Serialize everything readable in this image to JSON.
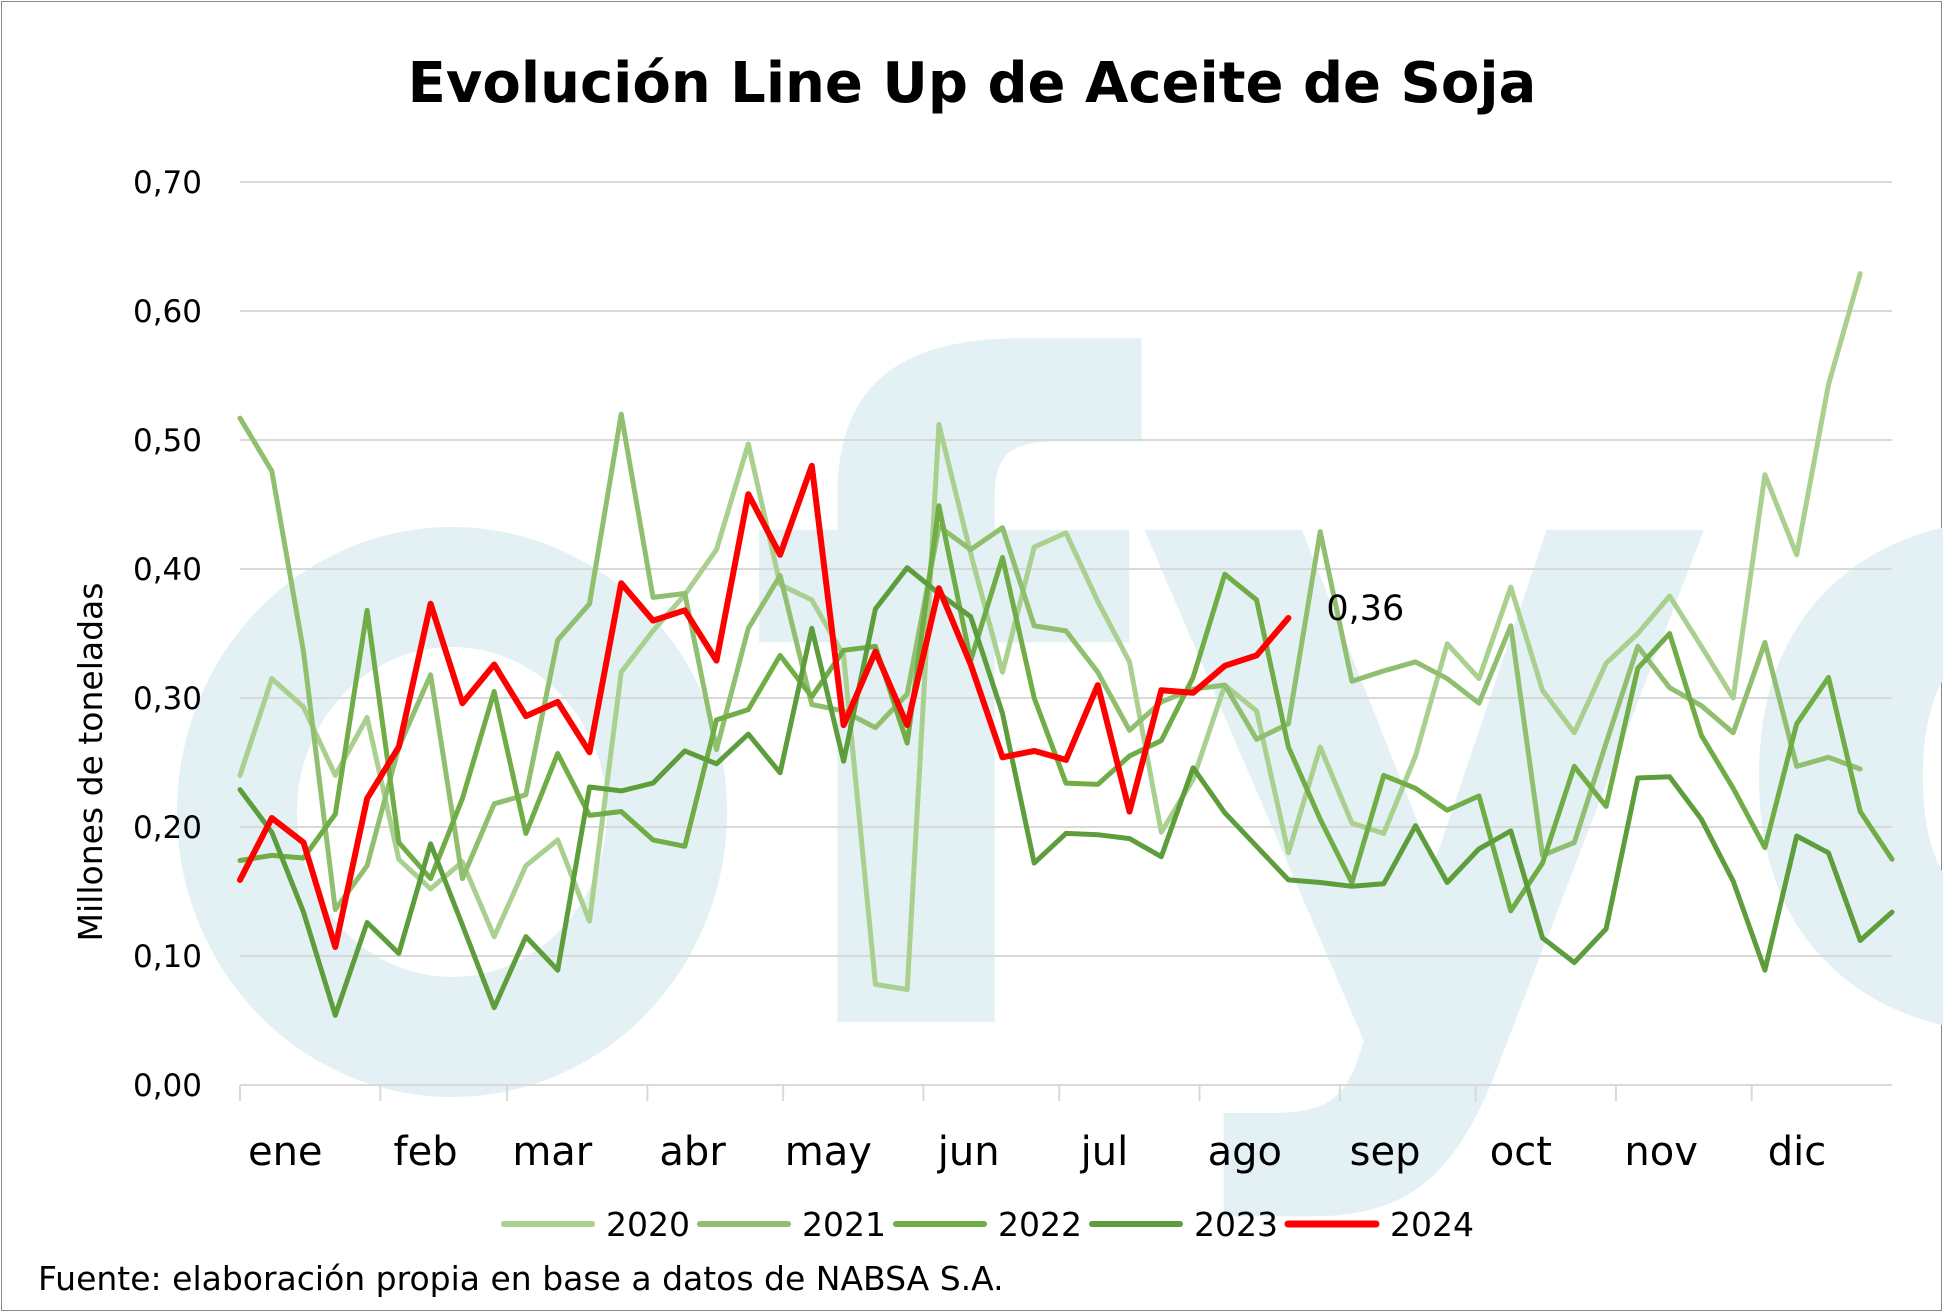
{
  "chart_data": {
    "type": "line",
    "title": "Evolución Line Up de Aceite de Soja",
    "ylabel": "Millones de toneladas",
    "xlabel": "",
    "ylim": [
      0,
      0.7
    ],
    "yticks": [
      0,
      0.1,
      0.2,
      0.3,
      0.4,
      0.5,
      0.6,
      0.7
    ],
    "ytick_labels": [
      "0,00",
      "0,10",
      "0,20",
      "0,30",
      "0,40",
      "0,50",
      "0,60",
      "0,70"
    ],
    "months": [
      "ene",
      "feb",
      "mar",
      "abr",
      "may",
      "jun",
      "jul",
      "ago",
      "sep",
      "oct",
      "nov",
      "dic"
    ],
    "x_unit": "week index (0-52)",
    "grid": "horizontal",
    "legend_position": "bottom",
    "series": [
      {
        "name": "2020",
        "color": "#a9d08e",
        "values": [
          0.24,
          0.315,
          0.293,
          0.24,
          0.285,
          0.175,
          0.152,
          0.173,
          0.115,
          0.17,
          0.19,
          0.127,
          0.32,
          0.352,
          0.38,
          0.415,
          0.497,
          0.388,
          0.376,
          0.333,
          0.078,
          0.074,
          0.512,
          0.412,
          0.32,
          0.417,
          0.428,
          0.375,
          0.328,
          0.196,
          0.237,
          0.31,
          0.29,
          0.18,
          0.262,
          0.203,
          0.195,
          0.255,
          0.342,
          0.315,
          0.386,
          0.306,
          0.273,
          0.327,
          0.35,
          0.379,
          0.34,
          0.3,
          0.473,
          0.411,
          0.543,
          0.629
        ]
      },
      {
        "name": "2021",
        "color": "#8fbf6f",
        "values": [
          0.517,
          0.476,
          0.336,
          0.136,
          0.17,
          0.262,
          0.318,
          0.16,
          0.218,
          0.225,
          0.345,
          0.373,
          0.52,
          0.378,
          0.381,
          0.26,
          0.354,
          0.395,
          0.295,
          0.29,
          0.277,
          0.303,
          0.433,
          0.415,
          0.432,
          0.356,
          0.352,
          0.32,
          0.275,
          0.297,
          0.307,
          0.31,
          0.268,
          0.28,
          0.429,
          0.313,
          0.321,
          0.328,
          0.315,
          0.296,
          0.356,
          0.178,
          0.188,
          0.265,
          0.34,
          0.308,
          0.294,
          0.273,
          0.343,
          0.247,
          0.254,
          0.245
        ]
      },
      {
        "name": "2022",
        "color": "#70ad47",
        "values": [
          0.174,
          0.178,
          0.176,
          0.21,
          0.368,
          0.188,
          0.16,
          0.222,
          0.305,
          0.195,
          0.257,
          0.209,
          0.212,
          0.19,
          0.185,
          0.283,
          0.291,
          0.333,
          0.301,
          0.337,
          0.34,
          0.265,
          0.449,
          0.329,
          0.409,
          0.3,
          0.234,
          0.233,
          0.255,
          0.267,
          0.316,
          0.396,
          0.376,
          0.262,
          0.206,
          0.157,
          0.24,
          0.23,
          0.213,
          0.224,
          0.135,
          0.172,
          0.247,
          0.216,
          0.323,
          0.35,
          0.271,
          0.23,
          0.184,
          0.28,
          0.316,
          0.212,
          0.175
        ]
      },
      {
        "name": "2023",
        "color": "#5e9d3c",
        "values": [
          0.229,
          0.196,
          0.134,
          0.054,
          0.126,
          0.102,
          0.187,
          0.124,
          0.06,
          0.115,
          0.089,
          0.231,
          0.228,
          0.234,
          0.259,
          0.249,
          0.272,
          0.242,
          0.354,
          0.251,
          0.369,
          0.401,
          0.381,
          0.363,
          0.288,
          0.172,
          0.195,
          0.194,
          0.191,
          0.177,
          0.246,
          0.211,
          0.185,
          0.159,
          0.157,
          0.154,
          0.156,
          0.201,
          0.157,
          0.183,
          0.197,
          0.114,
          0.095,
          0.121,
          0.238,
          0.239,
          0.206,
          0.158,
          0.089,
          0.193,
          0.18,
          0.112,
          0.134
        ]
      },
      {
        "name": "2024",
        "color": "#ff0000",
        "values": [
          0.159,
          0.207,
          0.188,
          0.107,
          0.222,
          0.262,
          0.373,
          0.296,
          0.326,
          0.286,
          0.297,
          0.258,
          0.389,
          0.36,
          0.368,
          0.329,
          0.458,
          0.411,
          0.48,
          0.279,
          0.336,
          0.279,
          0.385,
          0.326,
          0.254,
          0.259,
          0.252,
          0.31,
          0.212,
          0.306,
          0.304,
          0.325,
          0.333,
          0.362
        ]
      }
    ],
    "annotation": {
      "series": "2024",
      "text": "0,36"
    }
  },
  "source": "Fuente: elaboración propia en base a datos de NABSA S.A.",
  "watermark": "fyo"
}
